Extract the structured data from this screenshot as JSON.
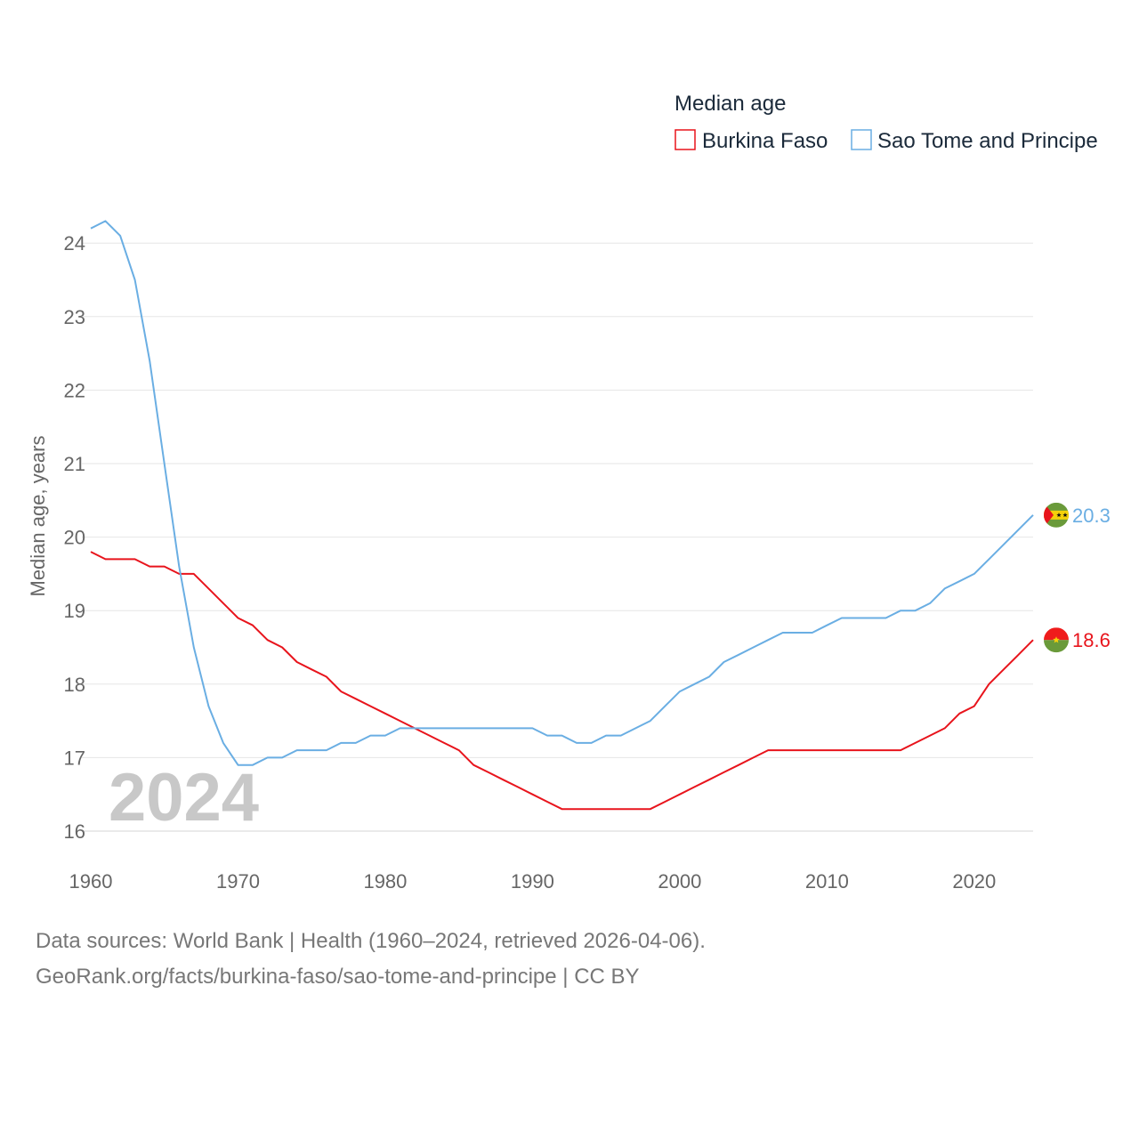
{
  "chart_data": {
    "type": "line",
    "legend_title": "Median age",
    "ylabel": "Median age, years",
    "xlabel": "",
    "watermark_year": "2024",
    "xlim": [
      1960,
      2024
    ],
    "ylim": [
      16,
      24.3
    ],
    "x_ticks": [
      1960,
      1970,
      1980,
      1990,
      2000,
      2010,
      2020
    ],
    "y_ticks": [
      16,
      17,
      18,
      19,
      20,
      21,
      22,
      23,
      24
    ],
    "legend_placement": "top-right",
    "x": [
      1960,
      1961,
      1962,
      1963,
      1964,
      1965,
      1966,
      1967,
      1968,
      1969,
      1970,
      1971,
      1972,
      1973,
      1974,
      1975,
      1976,
      1977,
      1978,
      1979,
      1980,
      1981,
      1982,
      1983,
      1984,
      1985,
      1986,
      1987,
      1988,
      1989,
      1990,
      1991,
      1992,
      1993,
      1994,
      1995,
      1996,
      1997,
      1998,
      1999,
      2000,
      2001,
      2002,
      2003,
      2004,
      2005,
      2006,
      2007,
      2008,
      2009,
      2010,
      2011,
      2012,
      2013,
      2014,
      2015,
      2016,
      2017,
      2018,
      2019,
      2020,
      2021,
      2022,
      2023,
      2024
    ],
    "series": [
      {
        "name": "Burkina Faso",
        "color": "#e8141c",
        "end_label": "18.6",
        "flag_icon": "burkina-faso-flag-icon",
        "values": [
          19.8,
          19.7,
          19.7,
          19.7,
          19.6,
          19.6,
          19.5,
          19.5,
          19.3,
          19.1,
          18.9,
          18.8,
          18.6,
          18.5,
          18.3,
          18.2,
          18.1,
          17.9,
          17.8,
          17.7,
          17.6,
          17.5,
          17.4,
          17.3,
          17.2,
          17.1,
          16.9,
          16.8,
          16.7,
          16.6,
          16.5,
          16.4,
          16.3,
          16.3,
          16.3,
          16.3,
          16.3,
          16.3,
          16.3,
          16.4,
          16.5,
          16.6,
          16.7,
          16.8,
          16.9,
          17.0,
          17.1,
          17.1,
          17.1,
          17.1,
          17.1,
          17.1,
          17.1,
          17.1,
          17.1,
          17.1,
          17.2,
          17.3,
          17.4,
          17.6,
          17.7,
          18.0,
          18.2,
          18.4,
          18.6
        ]
      },
      {
        "name": "Sao Tome and Principe",
        "color": "#6aaee3",
        "end_label": "20.3",
        "flag_icon": "sao-tome-and-principe-flag-icon",
        "values": [
          24.2,
          24.3,
          24.1,
          23.5,
          22.4,
          21.0,
          19.6,
          18.5,
          17.7,
          17.2,
          16.9,
          16.9,
          17.0,
          17.0,
          17.1,
          17.1,
          17.1,
          17.2,
          17.2,
          17.3,
          17.3,
          17.4,
          17.4,
          17.4,
          17.4,
          17.4,
          17.4,
          17.4,
          17.4,
          17.4,
          17.4,
          17.3,
          17.3,
          17.2,
          17.2,
          17.3,
          17.3,
          17.4,
          17.5,
          17.7,
          17.9,
          18.0,
          18.1,
          18.3,
          18.4,
          18.5,
          18.6,
          18.7,
          18.7,
          18.7,
          18.8,
          18.9,
          18.9,
          18.9,
          18.9,
          19.0,
          19.0,
          19.1,
          19.3,
          19.4,
          19.5,
          19.7,
          19.9,
          20.1,
          20.3
        ]
      }
    ]
  },
  "footer": {
    "line1": "Data sources: World Bank | Health (1960–2024, retrieved 2026-04-06).",
    "line2": "GeoRank.org/facts/burkina-faso/sao-tome-and-principe | CC BY"
  }
}
